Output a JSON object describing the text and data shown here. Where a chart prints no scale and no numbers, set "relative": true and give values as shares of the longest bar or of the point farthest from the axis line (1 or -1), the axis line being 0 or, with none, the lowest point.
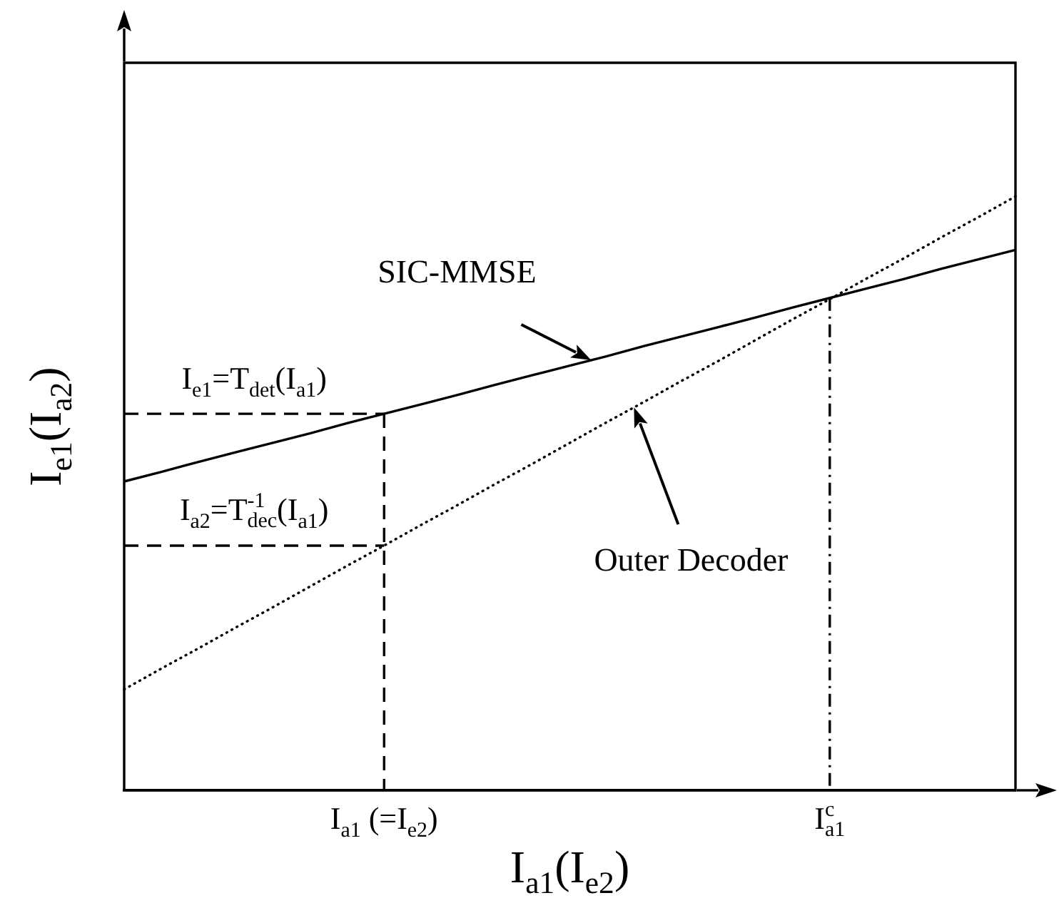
{
  "chart_data": {
    "type": "line",
    "relative": true,
    "xlabel": "I$_{a1}$(I$_{e2}$)",
    "ylabel": "I$_{e1}$(I$_{a2}$)",
    "categories": [
      null,
      null,
      null,
      null,
      null,
      null,
      null,
      "I$_{a1}$ (=I$_{e2}$)",
      null,
      null,
      null,
      null,
      null,
      null,
      null,
      null,
      null,
      null,
      null,
      "I$_{a1}$$^{c}$",
      null,
      null,
      null,
      null,
      null
    ],
    "marker": "none",
    "series": [
      {
        "name": "SIC-MMSE",
        "color": "#000000",
        "line_style": "solid",
        "values": [
          0.52,
          0.536,
          0.553,
          0.569,
          0.585,
          0.601,
          0.618,
          0.634,
          0.65,
          0.666,
          0.683,
          0.699,
          0.715,
          0.731,
          0.748,
          0.764,
          0.78,
          0.796,
          0.813,
          0.829,
          0.845,
          0.861,
          0.878,
          0.894,
          0.91
        ]
      },
      {
        "name": "Outer Decoder",
        "color": "#000000",
        "line_style": "dotted",
        "values": [
          0.17,
          0.205,
          0.239,
          0.274,
          0.308,
          0.343,
          0.378,
          0.412,
          0.447,
          0.481,
          0.516,
          0.55,
          0.585,
          0.62,
          0.654,
          0.689,
          0.723,
          0.758,
          0.793,
          0.827,
          0.862,
          0.896,
          0.931,
          0.965,
          1.0
        ]
      },
      {
        "color": "#000000",
        "line_style": "dashed",
        "values": [
          0.634,
          0.634,
          0.634,
          0.634,
          0.634,
          0.634,
          0.634,
          0.634,
          null,
          null,
          null,
          null,
          null,
          null,
          null,
          null,
          null,
          null,
          null,
          null,
          null,
          null,
          null,
          null,
          null
        ]
      },
      {
        "color": "#000000",
        "line_style": "dashed",
        "values": [
          0.412,
          0.412,
          0.412,
          0.412,
          0.412,
          0.412,
          0.412,
          0.412,
          null,
          null,
          null,
          null,
          null,
          null,
          null,
          null,
          null,
          null,
          null,
          null,
          null,
          null,
          null,
          null,
          null
        ]
      },
      {
        "color": "#000000",
        "line_style": "dashed",
        "x": [
          "I$_{a1}$ (=I$_{e2}$)",
          "I$_{a1}$ (=I$_{e2}$)"
        ],
        "values": [
          0.634,
          0
        ]
      },
      {
        "color": "#000000",
        "line_style": "dashdot",
        "x": [
          "I$_{a1}$$^{c}$",
          "I$_{a1}$$^{c}$"
        ],
        "values": [
          0.829,
          0
        ]
      }
    ],
    "annotations": [
      {
        "text": "I$_{e1}$=T$_{det}$(I$_{a1}$)",
        "x": "I$_{a1}$ (=I$_{e2}$)",
        "y": 0.634
      },
      {
        "text": "I$_{a2}$=T$_{dec}$$^{-1}$(I$_{a1}$)",
        "x": "I$_{a1}$ (=I$_{e2}$)",
        "y": 0.412
      }
    ]
  }
}
